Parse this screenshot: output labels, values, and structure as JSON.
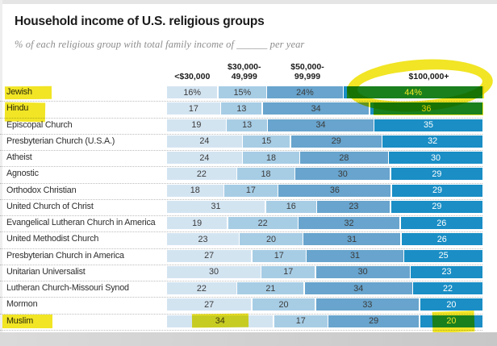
{
  "page": {
    "title": "Household income of U.S. religious groups",
    "subtitle": "% of each religious group with total family income of ______ per year"
  },
  "chart_data": {
    "type": "bar",
    "variant": "horizontal-stacked-100pct",
    "unit": "%",
    "title": "Household income of U.S. religious groups",
    "subtitle": "% of each religious group with total family income of ______ per year",
    "columns": [
      "<$30,000",
      "$30,000-\n49,999",
      "$50,000-\n99,999",
      "$100,000+"
    ],
    "segment_colors": [
      "#d3e4f1",
      "#a7cde5",
      "#68a4cd",
      "#1a8ec5"
    ],
    "rows": [
      {
        "label": "Jewish",
        "values": [
          16,
          15,
          24,
          44
        ],
        "display": [
          "16%",
          "15%",
          "24%",
          "44%"
        ]
      },
      {
        "label": "Hindu",
        "values": [
          17,
          13,
          34,
          36
        ]
      },
      {
        "label": "Episcopal Church",
        "values": [
          19,
          13,
          34,
          35
        ]
      },
      {
        "label": "Presbyterian Church (U.S.A.)",
        "values": [
          24,
          15,
          29,
          32
        ]
      },
      {
        "label": "Atheist",
        "values": [
          24,
          18,
          28,
          30
        ]
      },
      {
        "label": "Agnostic",
        "values": [
          22,
          18,
          30,
          29
        ]
      },
      {
        "label": "Orthodox Christian",
        "values": [
          18,
          17,
          36,
          29
        ]
      },
      {
        "label": "United Church of Christ",
        "values": [
          31,
          16,
          23,
          29
        ]
      },
      {
        "label": "Evangelical Lutheran Church in America",
        "values": [
          19,
          22,
          32,
          26
        ]
      },
      {
        "label": "United Methodist Church",
        "values": [
          23,
          20,
          31,
          26
        ]
      },
      {
        "label": "Presbyterian Church in America",
        "values": [
          27,
          17,
          31,
          25
        ]
      },
      {
        "label": "Unitarian Universalist",
        "values": [
          30,
          17,
          30,
          23
        ]
      },
      {
        "label": "Lutheran Church-Missouri Synod",
        "values": [
          22,
          21,
          34,
          22
        ]
      },
      {
        "label": "Mormon",
        "values": [
          27,
          20,
          33,
          20
        ]
      },
      {
        "label": "Muslim",
        "values": [
          34,
          17,
          29,
          20
        ]
      }
    ],
    "annotations": {
      "highlighter_color": "#f0e312",
      "marks": [
        "jewish-row-label",
        "hindu-row-label",
        "muslim-row-label",
        "100k-column-header-circled",
        "jewish-44pct-value",
        "hindu-36-value",
        "muslim-34-value",
        "muslim-20-value"
      ]
    },
    "legend_position": "top-column-headers",
    "grid": "dotted-row-separators"
  }
}
